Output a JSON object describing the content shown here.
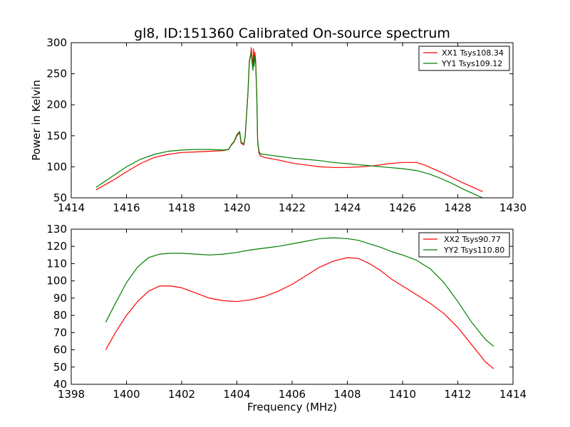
{
  "chart_data": [
    {
      "type": "line",
      "title": "gl8, ID:151360 Calibrated On-source spectrum",
      "xlabel": "",
      "ylabel": "Power in Kelvin",
      "xlim": [
        1414,
        1430
      ],
      "ylim": [
        50,
        300
      ],
      "xticks": [
        "1414",
        "1416",
        "1418",
        "1420",
        "1422",
        "1424",
        "1426",
        "1428",
        "1430"
      ],
      "yticks": [
        "50",
        "100",
        "150",
        "200",
        "250",
        "300"
      ],
      "legend": "top-right",
      "series": [
        {
          "name": "XX1 Tsys108.34",
          "color": "#ff0000",
          "x": [
            1414.9,
            1415.5,
            1416.0,
            1416.5,
            1417.0,
            1417.5,
            1418.0,
            1418.5,
            1419.0,
            1419.5,
            1419.7,
            1419.8,
            1419.9,
            1420.0,
            1420.1,
            1420.15,
            1420.25,
            1420.3,
            1420.4,
            1420.45,
            1420.5,
            1420.52,
            1420.55,
            1420.58,
            1420.6,
            1420.62,
            1420.65,
            1420.68,
            1420.72,
            1420.75,
            1420.8,
            1420.85,
            1421.0,
            1421.5,
            1422.0,
            1422.5,
            1423.0,
            1423.5,
            1424.0,
            1424.5,
            1425.0,
            1425.5,
            1426.0,
            1426.5,
            1426.8,
            1427.2,
            1427.6,
            1428.0,
            1428.4,
            1428.9
          ],
          "y": [
            63,
            78,
            92,
            105,
            115,
            120,
            123,
            124,
            125,
            126,
            128,
            135,
            140,
            150,
            155,
            138,
            135,
            148,
            220,
            270,
            282,
            292,
            275,
            260,
            290,
            270,
            285,
            270,
            215,
            140,
            122,
            118,
            115,
            111,
            106,
            103,
            100,
            99,
            99,
            100,
            102,
            105,
            107,
            107,
            103,
            95,
            87,
            78,
            70,
            60
          ]
        },
        {
          "name": "YY1 Tsys109.12",
          "color": "#008000",
          "x": [
            1414.9,
            1415.5,
            1416.0,
            1416.5,
            1417.0,
            1417.5,
            1418.0,
            1418.5,
            1419.0,
            1419.5,
            1419.7,
            1419.8,
            1419.9,
            1420.0,
            1420.1,
            1420.15,
            1420.25,
            1420.3,
            1420.4,
            1420.45,
            1420.5,
            1420.52,
            1420.55,
            1420.58,
            1420.6,
            1420.62,
            1420.65,
            1420.68,
            1420.72,
            1420.75,
            1420.8,
            1420.85,
            1421.0,
            1421.5,
            1422.0,
            1422.5,
            1423.0,
            1423.5,
            1424.0,
            1424.5,
            1425.0,
            1425.5,
            1426.0,
            1426.5,
            1427.0,
            1427.4,
            1427.8,
            1428.2,
            1428.6,
            1428.9
          ],
          "y": [
            67,
            85,
            100,
            112,
            120,
            125,
            127,
            128,
            128,
            127,
            128,
            136,
            141,
            152,
            157,
            140,
            137,
            150,
            218,
            268,
            280,
            285,
            268,
            255,
            280,
            262,
            278,
            265,
            212,
            142,
            125,
            121,
            120,
            117,
            114,
            112,
            110,
            107,
            105,
            103,
            101,
            99,
            97,
            94,
            88,
            81,
            73,
            64,
            56,
            50
          ]
        }
      ]
    },
    {
      "type": "line",
      "title": "",
      "xlabel": "Frequency (MHz)",
      "ylabel": "",
      "xlim": [
        1398,
        1414
      ],
      "ylim": [
        40,
        130
      ],
      "xticks": [
        "1398",
        "1400",
        "1402",
        "1404",
        "1406",
        "1408",
        "1410",
        "1412",
        "1414"
      ],
      "yticks": [
        "40",
        "50",
        "60",
        "70",
        "80",
        "90",
        "100",
        "110",
        "120",
        "130"
      ],
      "legend": "top-right",
      "series": [
        {
          "name": "XX2 Tsys90.77",
          "color": "#ff0000",
          "x": [
            1399.25,
            1399.6,
            1400.0,
            1400.4,
            1400.8,
            1401.2,
            1401.6,
            1402.0,
            1402.5,
            1403.0,
            1403.5,
            1404.0,
            1404.5,
            1405.0,
            1405.5,
            1406.0,
            1406.5,
            1407.0,
            1407.5,
            1408.0,
            1408.4,
            1408.8,
            1409.2,
            1409.6,
            1410.0,
            1410.5,
            1411.0,
            1411.5,
            1412.0,
            1412.5,
            1413.0,
            1413.3
          ],
          "y": [
            60,
            70,
            80,
            88,
            94,
            97,
            97,
            96,
            93,
            90,
            88.5,
            88,
            89,
            91,
            94,
            98,
            103,
            108,
            111.5,
            113.5,
            113,
            110,
            106,
            101,
            97,
            92,
            87,
            81,
            73,
            63,
            53,
            49
          ]
        },
        {
          "name": "YY2 Tsys110.80",
          "color": "#008000",
          "x": [
            1399.25,
            1399.6,
            1400.0,
            1400.4,
            1400.8,
            1401.2,
            1401.6,
            1402.0,
            1402.5,
            1403.0,
            1403.5,
            1404.0,
            1404.5,
            1405.0,
            1405.5,
            1406.0,
            1406.5,
            1407.0,
            1407.5,
            1408.0,
            1408.4,
            1408.8,
            1409.2,
            1409.6,
            1410.0,
            1410.5,
            1411.0,
            1411.5,
            1412.0,
            1412.5,
            1413.0,
            1413.3
          ],
          "y": [
            76,
            87,
            99,
            108,
            113.5,
            115.5,
            116,
            116,
            115.5,
            115,
            115.5,
            116.5,
            118,
            119,
            120,
            121.5,
            123,
            124.5,
            125,
            124.5,
            123.5,
            121.5,
            119.5,
            117,
            115,
            112,
            107,
            99,
            88,
            76,
            66,
            62
          ]
        }
      ]
    }
  ]
}
